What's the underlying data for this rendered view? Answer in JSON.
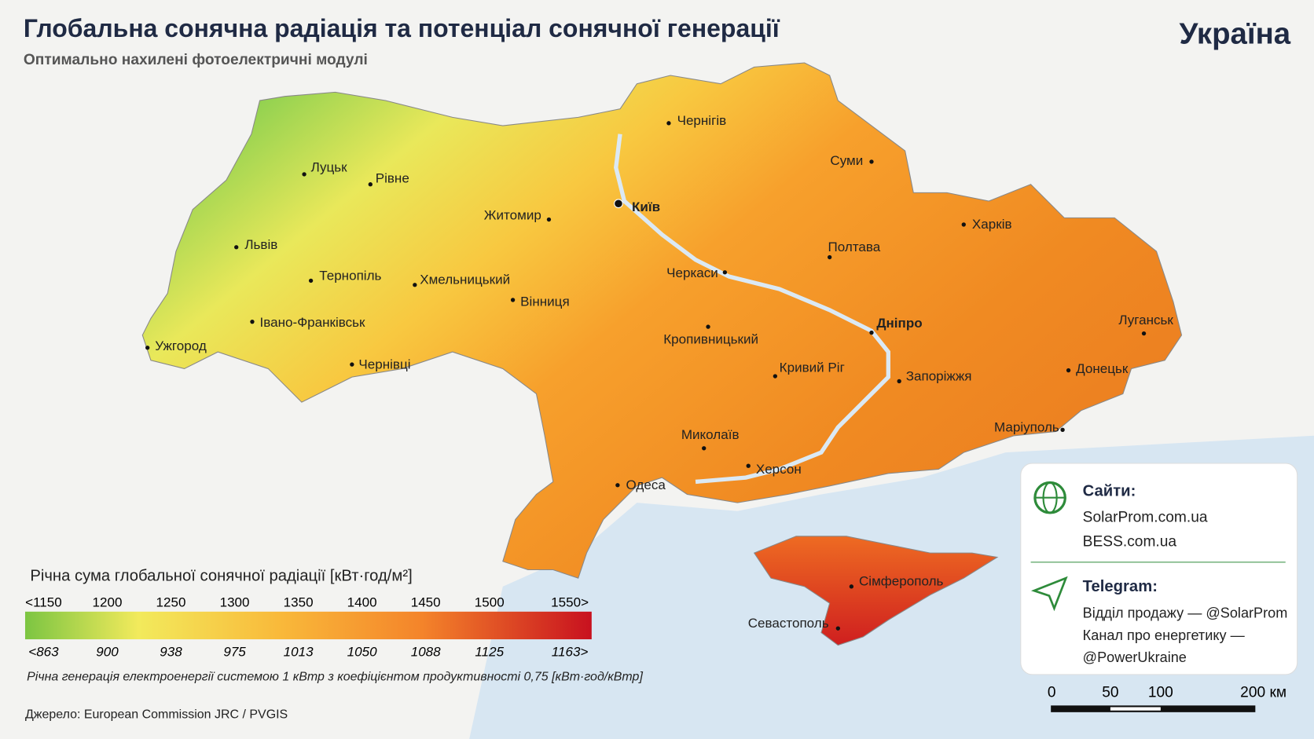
{
  "header": {
    "title": "Глобальна сонячна радіація та потенціал сонячної генерації",
    "subtitle": "Оптимально нахилені фотоелектричні модулі",
    "country": "Україна"
  },
  "cities": [
    "Чернігів",
    "Суми",
    "Луцьк",
    "Рівне",
    "Київ",
    "Житомир",
    "Харків",
    "Львів",
    "Полтава",
    "Тернопіль",
    "Хмельницький",
    "Черкаси",
    "Вінниця",
    "Івано-Франківськ",
    "Дніпро",
    "Луганськ",
    "Ужгород",
    "Кропивницький",
    "Чернівці",
    "Кривий Ріг",
    "Донецьк",
    "Запоріжжя",
    "Маріуполь",
    "Миколаїв",
    "Херсон",
    "Одеса",
    "Сімферополь",
    "Севастополь"
  ],
  "legend": {
    "title": "Річна сума глобальної сонячної радіації [кВт·год/м²]",
    "top_labels": [
      "<1150",
      "1200",
      "1250",
      "1300",
      "1350",
      "1400",
      "1450",
      "1500",
      "1550>"
    ],
    "bottom_labels": [
      "<863",
      "900",
      "938",
      "975",
      "1013",
      "1050",
      "1088",
      "1125",
      "1163>"
    ],
    "caption": "Річна генерація електроенергії системою 1 кВтр з коефіцієнтом продуктивності 0,75 [кВт·год/кВтр]"
  },
  "source": "Джерело: European Commission JRC / PVGIS",
  "info": {
    "sites_title": "Сайти:",
    "sites": [
      "SolarProm.com.ua",
      "BESS.com.ua"
    ],
    "telegram_title": "Telegram:",
    "telegram": [
      "Відділ продажу — @SolarProm",
      "Канал про енергетику —",
      "@PowerUkraine"
    ]
  },
  "scale": {
    "labels": [
      "0",
      "50",
      "100",
      "200 км"
    ]
  }
}
